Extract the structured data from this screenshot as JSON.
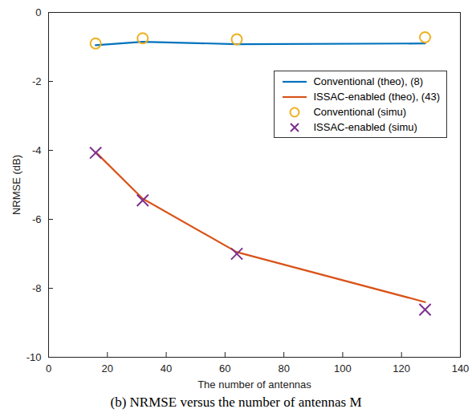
{
  "chart_data": {
    "type": "line",
    "caption": "(b) NRMSE versus the number of antennas M",
    "x_label": "The number of antennas",
    "y_label": "NRMSE (dB)",
    "xlim": [
      0,
      140
    ],
    "xticks": [
      0,
      20,
      40,
      60,
      80,
      100,
      120,
      140
    ],
    "ylim": [
      -10,
      0
    ],
    "yticks": [
      -10,
      -8,
      -6,
      -4,
      -2,
      0
    ],
    "grid": false,
    "legend": "upper right",
    "x": [
      16,
      32,
      64,
      128
    ],
    "series": [
      {
        "name": "Conventional (theo), (8)",
        "color": "#0072BD",
        "marker": "none",
        "line_style": "solid",
        "values": [
          -0.95,
          -0.85,
          -0.92,
          -0.9
        ]
      },
      {
        "name": "ISSAC-enabled (theo), (43)",
        "color": "#D95319",
        "marker": "none",
        "line_style": "solid",
        "values": [
          -4.05,
          -5.4,
          -6.95,
          -8.4
        ]
      },
      {
        "name": "Conventional (simu)",
        "color": "#EDB120",
        "marker": "circle",
        "line_style": "none",
        "values": [
          -0.9,
          -0.75,
          -0.78,
          -0.72
        ]
      },
      {
        "name": "ISSAC-enabled (simu)",
        "color": "#7E2F8E",
        "marker": "x",
        "line_style": "none",
        "values": [
          -4.07,
          -5.45,
          -7.0,
          -8.62
        ]
      }
    ]
  }
}
